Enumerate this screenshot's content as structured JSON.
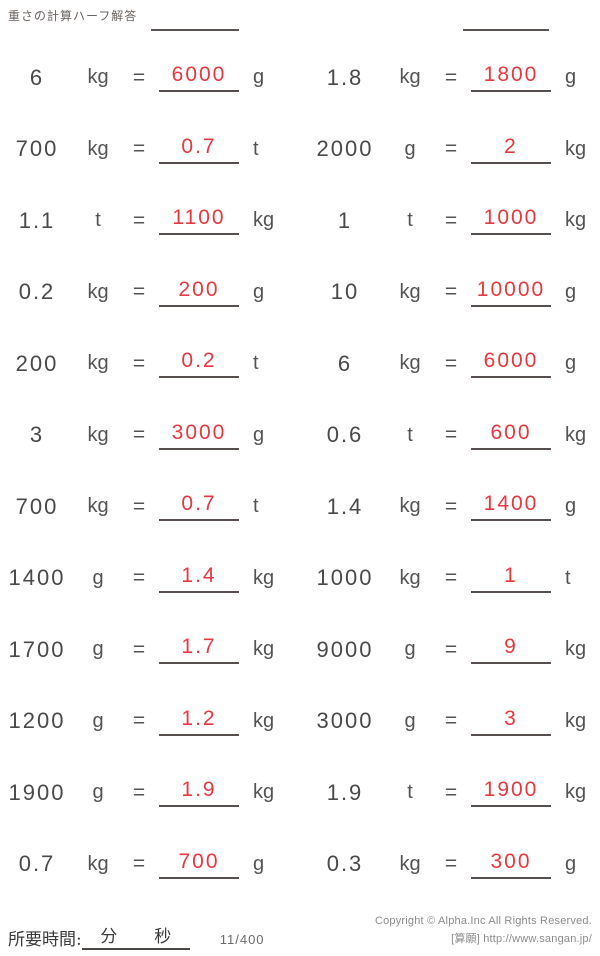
{
  "page": {
    "title": "重さの計算ハーフ解答",
    "equals_sign": "="
  },
  "colors": {
    "answer_red": "#e8383f",
    "text_dark": "#4b4948",
    "line_dark": "#574f4d"
  },
  "rows": [
    {
      "left": {
        "value": "6",
        "from_unit": "kg",
        "answer": "6000",
        "to_unit": "g"
      },
      "right": {
        "value": "1.8",
        "from_unit": "kg",
        "answer": "1800",
        "to_unit": "g"
      }
    },
    {
      "left": {
        "value": "700",
        "from_unit": "kg",
        "answer": "0.7",
        "to_unit": "t"
      },
      "right": {
        "value": "2000",
        "from_unit": "g",
        "answer": "2",
        "to_unit": "kg"
      }
    },
    {
      "left": {
        "value": "1.1",
        "from_unit": "t",
        "answer": "1100",
        "to_unit": "kg"
      },
      "right": {
        "value": "1",
        "from_unit": "t",
        "answer": "1000",
        "to_unit": "kg"
      }
    },
    {
      "left": {
        "value": "0.2",
        "from_unit": "kg",
        "answer": "200",
        "to_unit": "g"
      },
      "right": {
        "value": "10",
        "from_unit": "kg",
        "answer": "10000",
        "to_unit": "g"
      }
    },
    {
      "left": {
        "value": "200",
        "from_unit": "kg",
        "answer": "0.2",
        "to_unit": "t"
      },
      "right": {
        "value": "6",
        "from_unit": "kg",
        "answer": "6000",
        "to_unit": "g"
      }
    },
    {
      "left": {
        "value": "3",
        "from_unit": "kg",
        "answer": "3000",
        "to_unit": "g"
      },
      "right": {
        "value": "0.6",
        "from_unit": "t",
        "answer": "600",
        "to_unit": "kg"
      }
    },
    {
      "left": {
        "value": "700",
        "from_unit": "kg",
        "answer": "0.7",
        "to_unit": "t"
      },
      "right": {
        "value": "1.4",
        "from_unit": "kg",
        "answer": "1400",
        "to_unit": "g"
      }
    },
    {
      "left": {
        "value": "1400",
        "from_unit": "g",
        "answer": "1.4",
        "to_unit": "kg"
      },
      "right": {
        "value": "1000",
        "from_unit": "kg",
        "answer": "1",
        "to_unit": "t"
      }
    },
    {
      "left": {
        "value": "1700",
        "from_unit": "g",
        "answer": "1.7",
        "to_unit": "kg"
      },
      "right": {
        "value": "9000",
        "from_unit": "g",
        "answer": "9",
        "to_unit": "kg"
      }
    },
    {
      "left": {
        "value": "1200",
        "from_unit": "g",
        "answer": "1.2",
        "to_unit": "kg"
      },
      "right": {
        "value": "3000",
        "from_unit": "g",
        "answer": "3",
        "to_unit": "kg"
      }
    },
    {
      "left": {
        "value": "1900",
        "from_unit": "g",
        "answer": "1.9",
        "to_unit": "kg"
      },
      "right": {
        "value": "1.9",
        "from_unit": "t",
        "answer": "1900",
        "to_unit": "kg"
      }
    },
    {
      "left": {
        "value": "0.7",
        "from_unit": "kg",
        "answer": "700",
        "to_unit": "g"
      },
      "right": {
        "value": "0.3",
        "from_unit": "kg",
        "answer": "300",
        "to_unit": "g"
      }
    }
  ],
  "footer": {
    "time_label": "所要時間:",
    "minutes_label": "分",
    "seconds_label": "秒",
    "page_number": "11/400",
    "copyright_line1": "Copyright © Alpha.Inc All Rights Reserved.",
    "copyright_line2": "[算願] http://www.sangan.jp/"
  }
}
